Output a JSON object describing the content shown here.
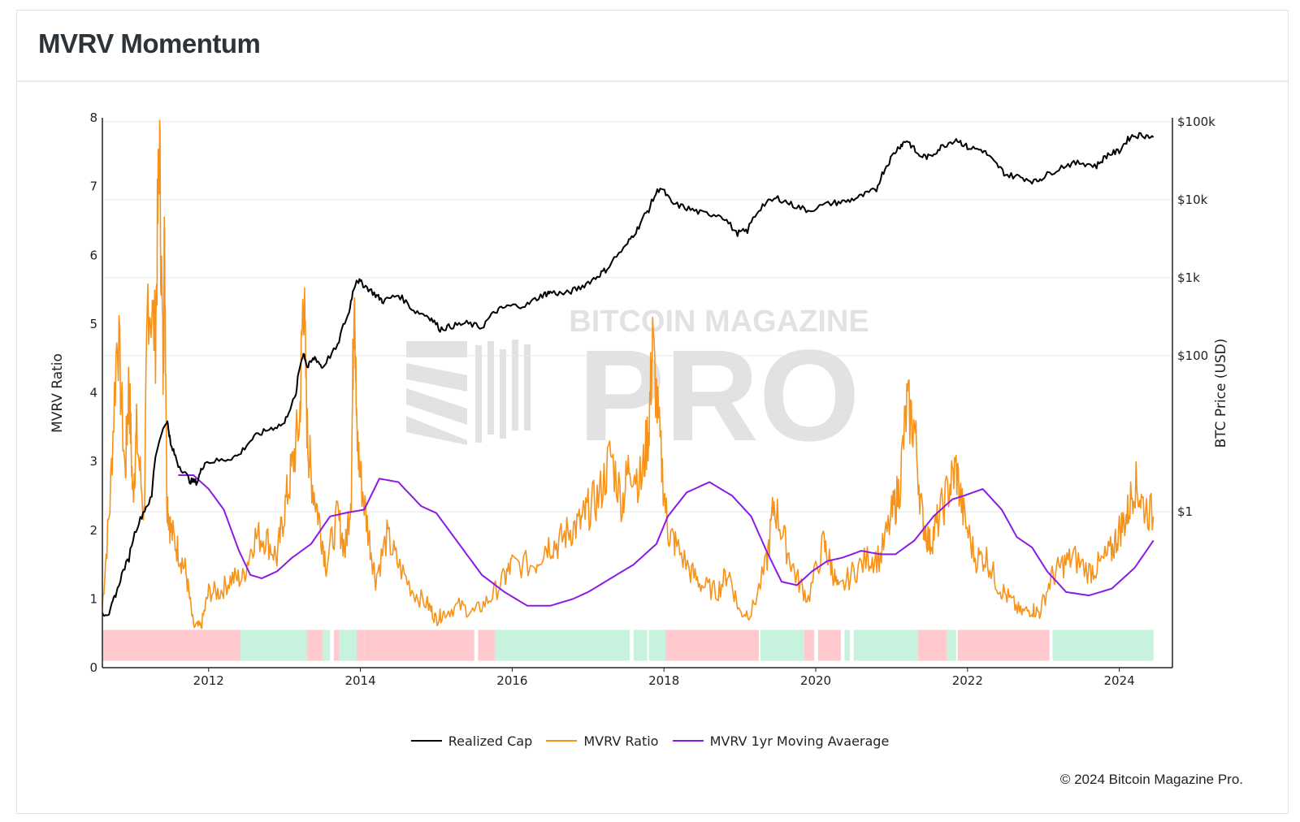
{
  "page": {
    "title": "MVRV Momentum",
    "credit": "© 2024 Bitcoin Magazine Pro."
  },
  "watermark": {
    "line1": "BITCOIN MAGAZINE",
    "line2": "PRO"
  },
  "colors": {
    "realized_cap": "#000000",
    "mvrv": "#f7931a",
    "mvrv_ma": "#8b1ae6",
    "band_red": "#ffc9cd",
    "band_green": "#c7f2dd"
  },
  "chart_data": {
    "type": "line",
    "title": "MVRV Momentum",
    "xlabel": "",
    "ylabel": "MVRV Ratio",
    "y2label": "BTC Price (USD)",
    "xlim": [
      2010.6,
      2024.7
    ],
    "ylim": [
      0,
      8
    ],
    "y2lim_log10": [
      -2.0,
      5.05
    ],
    "y2scale": "log",
    "x_ticks": [
      "2012",
      "2014",
      "2016",
      "2018",
      "2020",
      "2022",
      "2024"
    ],
    "y_ticks": [
      "0",
      "1",
      "2",
      "3",
      "4",
      "5",
      "6",
      "7",
      "8"
    ],
    "y2_ticks": [
      {
        "label": "$1",
        "value": 1
      },
      {
        "label": "$100",
        "value": 100
      },
      {
        "label": "$1k",
        "value": 1000
      },
      {
        "label": "$10k",
        "value": 10000
      },
      {
        "label": "$100k",
        "value": 100000
      }
    ],
    "grid": true,
    "legend_position": "bottom-center",
    "series": [
      {
        "name": "Realized Cap",
        "axis": "right",
        "x": [
          2010.6,
          2010.7,
          2010.8,
          2010.95,
          2011.1,
          2011.25,
          2011.45,
          2011.5,
          2011.6,
          2011.75,
          2011.85,
          2011.95,
          2012.2,
          2012.4,
          2012.6,
          2012.8,
          2013.0,
          2013.15,
          2013.25,
          2013.3,
          2013.4,
          2013.5,
          2013.7,
          2013.85,
          2013.95,
          2014.05,
          2014.2,
          2014.3,
          2014.5,
          2014.7,
          2014.9,
          2015.05,
          2015.2,
          2015.4,
          2015.6,
          2015.8,
          2015.95,
          2016.2,
          2016.4,
          2016.5,
          2016.7,
          2016.9,
          2017.1,
          2017.25,
          2017.5,
          2017.65,
          2017.8,
          2017.95,
          2018.1,
          2018.3,
          2018.5,
          2018.75,
          2018.95,
          2019.1,
          2019.3,
          2019.5,
          2019.7,
          2019.9,
          2020.2,
          2020.4,
          2020.6,
          2020.8,
          2020.95,
          2021.1,
          2021.2,
          2021.35,
          2021.5,
          2021.65,
          2021.85,
          2022.0,
          2022.2,
          2022.35,
          2022.5,
          2022.7,
          2022.9,
          2023.05,
          2023.3,
          2023.5,
          2023.7,
          2023.85,
          2024.0,
          2024.15,
          2024.3,
          2024.45
        ],
        "values": [
          0.05,
          0.05,
          0.1,
          0.25,
          0.8,
          1.5,
          15,
          7,
          4,
          2.5,
          2.4,
          4.3,
          4.6,
          5.3,
          9,
          11.5,
          13.5,
          30,
          110,
          70,
          95,
          70,
          130,
          350,
          950,
          800,
          600,
          500,
          600,
          380,
          320,
          220,
          240,
          260,
          230,
          380,
          430,
          450,
          600,
          650,
          620,
          750,
          1000,
          1300,
          2500,
          4200,
          7500,
          14500,
          9000,
          7800,
          6700,
          6400,
          3700,
          4000,
          8500,
          10500,
          8500,
          7300,
          9000,
          9500,
          11000,
          13500,
          29000,
          48000,
          58000,
          37000,
          35000,
          47000,
          60000,
          47000,
          43000,
          30000,
          21000,
          19500,
          17000,
          21000,
          28000,
          30000,
          27000,
          38000,
          42000,
          65000,
          68000,
          63000
        ]
      },
      {
        "name": "MVRV Ratio",
        "axis": "left",
        "x": [
          2010.6,
          2010.7,
          2010.8,
          2010.9,
          2010.95,
          2011.0,
          2011.05,
          2011.15,
          2011.2,
          2011.3,
          2011.35,
          2011.4,
          2011.42,
          2011.45,
          2011.5,
          2011.6,
          2011.7,
          2011.8,
          2011.9,
          2012.0,
          2012.15,
          2012.3,
          2012.45,
          2012.6,
          2012.75,
          2012.9,
          2013.0,
          2013.1,
          2013.2,
          2013.25,
          2013.3,
          2013.35,
          2013.45,
          2013.55,
          2013.7,
          2013.8,
          2013.88,
          2013.92,
          2013.95,
          2014.0,
          2014.1,
          2014.2,
          2014.35,
          2014.5,
          2014.7,
          2014.9,
          2015.0,
          2015.1,
          2015.3,
          2015.5,
          2015.7,
          2015.9,
          2016.0,
          2016.3,
          2016.45,
          2016.6,
          2016.75,
          2016.9,
          2017.0,
          2017.15,
          2017.3,
          2017.45,
          2017.55,
          2017.7,
          2017.8,
          2017.85,
          2017.95,
          2018.05,
          2018.15,
          2018.35,
          2018.5,
          2018.7,
          2018.85,
          2019.0,
          2019.15,
          2019.35,
          2019.45,
          2019.6,
          2019.75,
          2019.9,
          2020.1,
          2020.2,
          2020.3,
          2020.5,
          2020.7,
          2020.85,
          2021.0,
          2021.1,
          2021.2,
          2021.3,
          2021.4,
          2021.5,
          2021.6,
          2021.75,
          2021.85,
          2021.95,
          2022.1,
          2022.25,
          2022.4,
          2022.55,
          2022.7,
          2022.85,
          2022.95,
          2023.1,
          2023.25,
          2023.4,
          2023.6,
          2023.75,
          2023.9,
          2024.0,
          2024.1,
          2024.2,
          2024.3,
          2024.45
        ],
        "values": [
          0.9,
          2.4,
          5.0,
          2.8,
          4.2,
          2.5,
          3.4,
          2.2,
          5.5,
          4.8,
          7.7,
          4.3,
          6.4,
          2.5,
          2.0,
          1.7,
          1.4,
          0.6,
          0.6,
          1.1,
          1.1,
          1.3,
          1.3,
          1.9,
          1.9,
          1.6,
          2.3,
          2.9,
          3.6,
          5.6,
          3.4,
          2.8,
          2.2,
          1.5,
          2.2,
          1.7,
          2.6,
          5.9,
          3.4,
          2.8,
          2.0,
          1.3,
          1.9,
          1.5,
          1.1,
          0.9,
          0.7,
          0.8,
          0.9,
          0.8,
          1.0,
          1.3,
          1.5,
          1.5,
          1.8,
          1.8,
          2.0,
          2.1,
          2.3,
          2.5,
          3.1,
          2.4,
          3.0,
          2.7,
          3.5,
          4.7,
          3.2,
          2.0,
          1.8,
          1.4,
          1.2,
          1.1,
          1.4,
          0.8,
          0.8,
          1.5,
          2.4,
          1.8,
          1.3,
          1.0,
          1.8,
          1.5,
          1.1,
          1.4,
          1.6,
          1.6,
          2.2,
          2.6,
          3.8,
          3.5,
          2.2,
          1.8,
          2.1,
          2.6,
          2.9,
          2.2,
          1.6,
          1.6,
          1.2,
          1.0,
          0.8,
          0.85,
          0.8,
          1.3,
          1.5,
          1.6,
          1.4,
          1.5,
          1.7,
          2.0,
          2.2,
          2.7,
          2.4,
          2.2
        ]
      },
      {
        "name": "MVRV 1yr Moving Avaerage",
        "axis": "left",
        "x": [
          2011.6,
          2011.8,
          2012.0,
          2012.2,
          2012.4,
          2012.55,
          2012.7,
          2012.9,
          2013.1,
          2013.35,
          2013.6,
          2013.8,
          2014.05,
          2014.25,
          2014.5,
          2014.8,
          2015.0,
          2015.3,
          2015.6,
          2015.9,
          2016.2,
          2016.5,
          2016.8,
          2017.0,
          2017.3,
          2017.6,
          2017.9,
          2018.05,
          2018.3,
          2018.6,
          2018.9,
          2019.15,
          2019.35,
          2019.55,
          2019.75,
          2019.95,
          2020.15,
          2020.35,
          2020.6,
          2020.85,
          2021.05,
          2021.3,
          2021.55,
          2021.8,
          2021.95,
          2022.2,
          2022.45,
          2022.65,
          2022.85,
          2023.05,
          2023.3,
          2023.6,
          2023.9,
          2024.2,
          2024.45
        ],
        "values": [
          2.8,
          2.8,
          2.6,
          2.3,
          1.7,
          1.35,
          1.3,
          1.4,
          1.6,
          1.8,
          2.2,
          2.25,
          2.3,
          2.75,
          2.7,
          2.35,
          2.25,
          1.8,
          1.35,
          1.1,
          0.9,
          0.9,
          1.0,
          1.1,
          1.3,
          1.5,
          1.8,
          2.2,
          2.55,
          2.7,
          2.5,
          2.2,
          1.7,
          1.25,
          1.2,
          1.4,
          1.55,
          1.6,
          1.7,
          1.65,
          1.65,
          1.85,
          2.2,
          2.45,
          2.5,
          2.6,
          2.3,
          1.9,
          1.75,
          1.4,
          1.1,
          1.05,
          1.15,
          1.45,
          1.85
        ]
      }
    ],
    "bands": {
      "y_range": [
        0.1,
        0.55
      ],
      "segments": [
        {
          "from": 2010.6,
          "to": 2012.42,
          "color": "red"
        },
        {
          "from": 2012.42,
          "to": 2013.3,
          "color": "green"
        },
        {
          "from": 2013.3,
          "to": 2013.5,
          "color": "red"
        },
        {
          "from": 2013.5,
          "to": 2013.6,
          "color": "green"
        },
        {
          "from": 2013.65,
          "to": 2013.72,
          "color": "red"
        },
        {
          "from": 2013.72,
          "to": 2013.95,
          "color": "green"
        },
        {
          "from": 2013.95,
          "to": 2014.05,
          "color": "red"
        },
        {
          "from": 2014.05,
          "to": 2015.5,
          "color": "red"
        },
        {
          "from": 2015.55,
          "to": 2015.77,
          "color": "red"
        },
        {
          "from": 2015.77,
          "to": 2017.55,
          "color": "green"
        },
        {
          "from": 2017.6,
          "to": 2017.78,
          "color": "green"
        },
        {
          "from": 2017.8,
          "to": 2018.02,
          "color": "green"
        },
        {
          "from": 2018.02,
          "to": 2019.25,
          "color": "red"
        },
        {
          "from": 2019.27,
          "to": 2019.85,
          "color": "green"
        },
        {
          "from": 2019.85,
          "to": 2019.98,
          "color": "red"
        },
        {
          "from": 2020.03,
          "to": 2020.15,
          "color": "red"
        },
        {
          "from": 2020.15,
          "to": 2020.33,
          "color": "red"
        },
        {
          "from": 2020.38,
          "to": 2020.45,
          "color": "green"
        },
        {
          "from": 2020.5,
          "to": 2021.35,
          "color": "green"
        },
        {
          "from": 2021.35,
          "to": 2021.73,
          "color": "red"
        },
        {
          "from": 2021.73,
          "to": 2021.85,
          "color": "green"
        },
        {
          "from": 2021.87,
          "to": 2023.08,
          "color": "red"
        },
        {
          "from": 2023.12,
          "to": 2024.45,
          "color": "green"
        }
      ]
    }
  }
}
